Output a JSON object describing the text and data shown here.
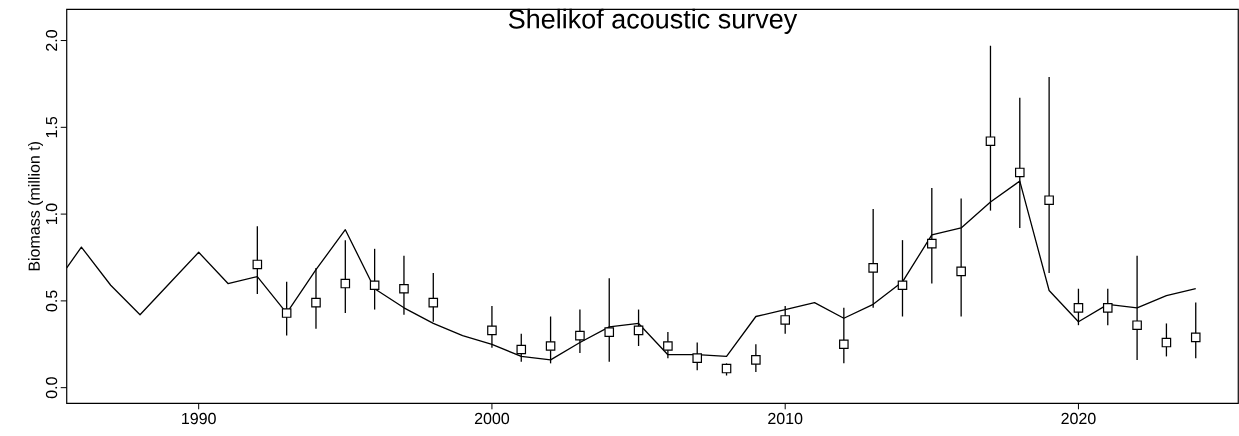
{
  "chart_data": {
    "type": "line",
    "title": "Shelikof acoustic survey",
    "ylabel": "Biomass (million t)",
    "xlim": [
      1985.5,
      2025.45
    ],
    "ylim": [
      -0.09,
      2.18
    ],
    "xticks": [
      1990,
      2000,
      2010,
      2020
    ],
    "yticks": [
      {
        "value": 0,
        "label": "0.0"
      },
      {
        "value": 0.5,
        "label": "0.5"
      },
      {
        "value": 1,
        "label": "1.0"
      },
      {
        "value": 1.5,
        "label": "1.5"
      },
      {
        "value": 2,
        "label": "2.0"
      }
    ],
    "series": [
      {
        "type": "line",
        "color": "#000000",
        "marker": "none",
        "line_style": "solid",
        "x": [
          1985.5,
          1986,
          1987,
          1988,
          1989,
          1990,
          1991,
          1992,
          1993,
          1994,
          1995,
          1996,
          1997,
          1998,
          1999,
          2000,
          2001,
          2002,
          2003,
          2004,
          2005,
          2006,
          2007,
          2008,
          2009,
          2010,
          2011,
          2012,
          2013,
          2014,
          2015,
          2016,
          2017,
          2018,
          2019,
          2020,
          2021,
          2022,
          2023,
          2024
        ],
        "values": [
          0.69,
          0.81,
          0.59,
          0.42,
          0.6,
          0.78,
          0.6,
          0.64,
          0.43,
          0.68,
          0.91,
          0.57,
          0.46,
          0.37,
          0.3,
          0.25,
          0.18,
          0.16,
          0.26,
          0.35,
          0.37,
          0.19,
          0.19,
          0.18,
          0.41,
          0.45,
          0.49,
          0.4,
          0.48,
          0.61,
          0.88,
          0.92,
          1.07,
          1.19,
          0.56,
          0.38,
          0.48,
          0.46,
          0.53,
          0.57
        ]
      },
      {
        "type": "scatter",
        "color": "#000000",
        "marker": "square",
        "x": [
          1992,
          1993,
          1994,
          1995,
          1996,
          1997,
          1998,
          2000,
          2001,
          2002,
          2003,
          2004,
          2005,
          2006,
          2007,
          2008,
          2009,
          2010,
          2012,
          2013,
          2014,
          2015,
          2016,
          2017,
          2018,
          2019,
          2020,
          2021,
          2022,
          2023,
          2024
        ],
        "values": [
          0.71,
          0.43,
          0.49,
          0.6,
          0.59,
          0.57,
          0.49,
          0.33,
          0.22,
          0.24,
          0.3,
          0.32,
          0.33,
          0.24,
          0.17,
          0.11,
          0.16,
          0.39,
          0.25,
          0.69,
          0.59,
          0.83,
          0.67,
          1.42,
          1.24,
          1.08,
          0.46,
          0.46,
          0.36,
          0.26,
          0.29
        ],
        "errors": [
          [
            0.54,
            0.93
          ],
          [
            0.3,
            0.61
          ],
          [
            0.34,
            0.69
          ],
          [
            0.43,
            0.85
          ],
          [
            0.45,
            0.8
          ],
          [
            0.42,
            0.76
          ],
          [
            0.38,
            0.66
          ],
          [
            0.23,
            0.47
          ],
          [
            0.15,
            0.31
          ],
          [
            0.14,
            0.41
          ],
          [
            0.2,
            0.45
          ],
          [
            0.15,
            0.63
          ],
          [
            0.24,
            0.45
          ],
          [
            0.17,
            0.32
          ],
          [
            0.1,
            0.26
          ],
          [
            0.07,
            0.14
          ],
          [
            0.09,
            0.25
          ],
          [
            0.31,
            0.47
          ],
          [
            0.14,
            0.46
          ],
          [
            0.46,
            1.03
          ],
          [
            0.41,
            0.85
          ],
          [
            0.6,
            1.15
          ],
          [
            0.41,
            1.09
          ],
          [
            1.02,
            1.97
          ],
          [
            0.92,
            1.67
          ],
          [
            0.66,
            1.79
          ],
          [
            0.36,
            0.57
          ],
          [
            0.36,
            0.57
          ],
          [
            0.16,
            0.76
          ],
          [
            0.18,
            0.37
          ],
          [
            0.17,
            0.49
          ]
        ]
      }
    ]
  }
}
